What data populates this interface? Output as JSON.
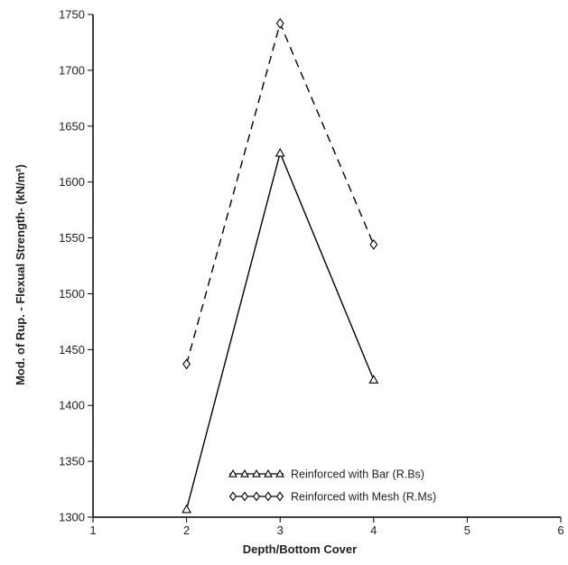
{
  "chart_data": {
    "type": "line",
    "title": "",
    "xlabel": "Depth/Bottom Cover",
    "ylabel": "Mod.  of Rup. - Flexual Strength- (kN/m²)",
    "xlim": [
      1,
      6
    ],
    "ylim": [
      1300,
      1750
    ],
    "x_ticks": [
      "1",
      "2",
      "3",
      "4",
      "5",
      "6"
    ],
    "y_ticks": [
      "1300",
      "1350",
      "1400",
      "1450",
      "1500",
      "1550",
      "1600",
      "1650",
      "1700",
      "1750"
    ],
    "grid": false,
    "legend_position": "bottom-center",
    "series": [
      {
        "name": "Reinforced with Bar (R.Bs)",
        "marker": "triangle",
        "line_style": "solid",
        "color": "#000000",
        "x": [
          2,
          3,
          4
        ],
        "y": [
          1307,
          1626,
          1423
        ]
      },
      {
        "name": "Reinforced with Mesh (R.Ms)",
        "marker": "diamond",
        "line_style": "dashed",
        "color": "#000000",
        "x": [
          2,
          3,
          4
        ],
        "y": [
          1437,
          1742,
          1544
        ]
      }
    ]
  }
}
